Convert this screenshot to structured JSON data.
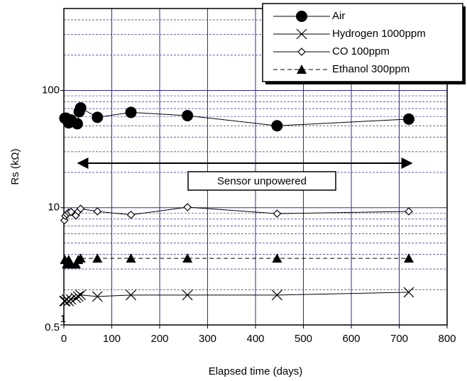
{
  "chart_data": {
    "type": "line",
    "x_label": "Elapsed time (days)",
    "y_label": "Rs (kΩ)",
    "annotation": "Sensor unpowered",
    "bottom_label": "0.5",
    "log_y": true,
    "grid": true,
    "legend_position": "upper right",
    "xlim": [
      0,
      800
    ],
    "xticks": [
      0,
      100,
      200,
      300,
      400,
      500,
      600,
      700,
      800
    ],
    "ylim": [
      1,
      500
    ],
    "yticks": [
      1,
      10,
      100
    ],
    "series": [
      {
        "name": "Air",
        "color": "#000000",
        "marker": "circle",
        "dashed": false,
        "x": [
          2,
          5,
          10,
          15,
          28,
          32,
          35,
          70,
          140,
          258,
          445,
          720
        ],
        "values": [
          58,
          58,
          53,
          56,
          52,
          66,
          71,
          59,
          65,
          61,
          50,
          57
        ]
      },
      {
        "name": "Hydrogen 1000ppm",
        "color": "#000000",
        "marker": "cross",
        "dashed": false,
        "x": [
          1,
          3,
          6,
          10,
          15,
          25,
          30,
          35,
          70,
          140,
          258,
          445,
          720
        ],
        "values": [
          1.6,
          1.6,
          1.65,
          1.6,
          1.65,
          1.7,
          1.75,
          1.8,
          1.75,
          1.8,
          1.8,
          1.8,
          1.9
        ]
      },
      {
        "name": "CO 100ppm",
        "color": "#000000",
        "marker": "diamond",
        "dashed": false,
        "x": [
          1,
          3,
          6,
          10,
          15,
          25,
          30,
          35,
          70,
          140,
          258,
          445,
          720
        ],
        "values": [
          7.8,
          8.5,
          8.8,
          9.1,
          9.2,
          8.6,
          9.3,
          9.8,
          9.3,
          8.7,
          10.1,
          8.9,
          9.3
        ]
      },
      {
        "name": "Ethanol 300ppm",
        "color": "#000000",
        "marker": "triangle",
        "dashed": true,
        "x": [
          2,
          6,
          10,
          15,
          25,
          30,
          35,
          70,
          140,
          258,
          445,
          720
        ],
        "values": [
          3.6,
          3.3,
          3.6,
          3.3,
          3.3,
          3.6,
          3.7,
          3.7,
          3.7,
          3.7,
          3.7,
          3.7
        ]
      }
    ]
  }
}
